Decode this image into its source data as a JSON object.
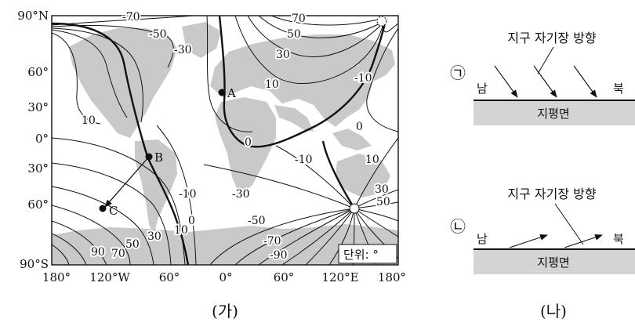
{
  "panel_a": {
    "caption": "(가)",
    "y_ticks": [
      "90°N",
      "60°",
      "30°",
      "0°",
      "30°",
      "60°",
      "90°S"
    ],
    "x_ticks": [
      "180°",
      "120°W",
      "60°",
      "0°",
      "60°",
      "120°E",
      "180°"
    ],
    "unit_box": "단위: °",
    "points": [
      {
        "label": "A"
      },
      {
        "label": "B"
      },
      {
        "label": "C"
      }
    ],
    "contour_labels": [
      "-70",
      "-50",
      "-30",
      "10",
      "0",
      "70",
      "50",
      "30",
      "10",
      "-10",
      "0",
      "-10",
      "10",
      "-10",
      "-30",
      "10",
      "0",
      "30",
      "50",
      "70",
      "90",
      "-50",
      "-70",
      "-90",
      "30",
      "50"
    ]
  },
  "panel_b": {
    "caption": "(나)",
    "case_1": {
      "marker": "㉠",
      "title": "지구 자기장 방향",
      "south": "남",
      "north": "북",
      "surface": "지평면"
    },
    "case_2": {
      "marker": "㉡",
      "title": "지구 자기장 방향",
      "south": "남",
      "north": "북",
      "surface": "지평면"
    }
  }
}
